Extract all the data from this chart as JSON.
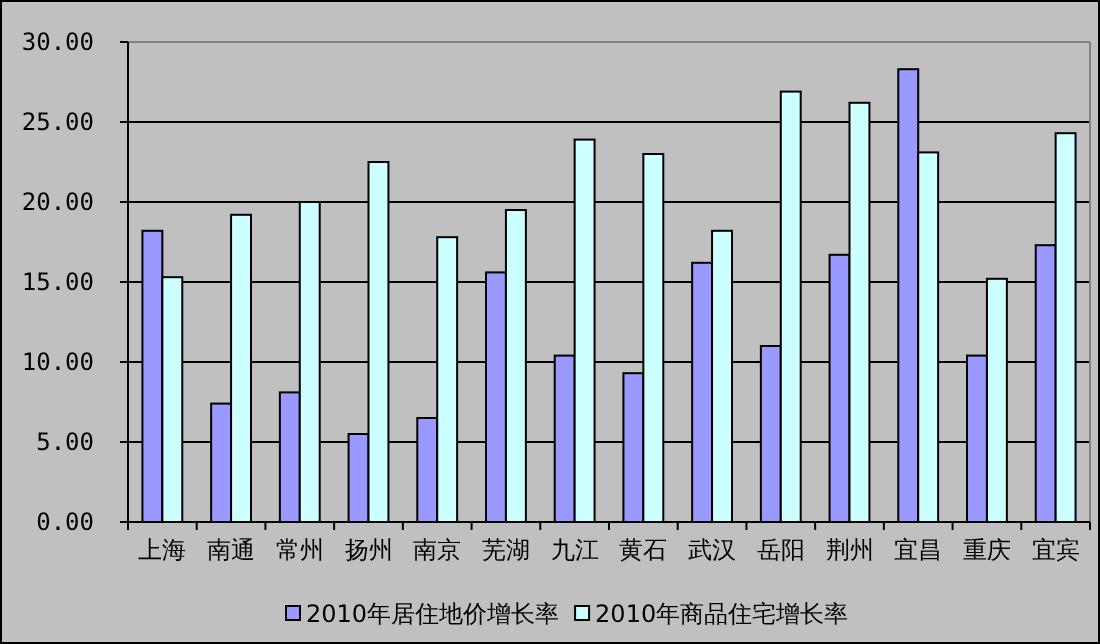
{
  "chart_data": {
    "type": "bar",
    "categories": [
      "上海",
      "南通",
      "常州",
      "扬州",
      "南京",
      "芜湖",
      "九江",
      "黄石",
      "武汉",
      "岳阳",
      "荆州",
      "宜昌",
      "重庆",
      "宜宾"
    ],
    "series": [
      {
        "name": "2010年居住地价增长率",
        "color": "#9999ff",
        "values": [
          18.2,
          7.4,
          8.1,
          5.5,
          6.5,
          15.6,
          10.4,
          9.3,
          16.2,
          11.0,
          16.7,
          28.3,
          10.4,
          17.3
        ]
      },
      {
        "name": "2010年商品住宅增长率",
        "color": "#ccffff",
        "values": [
          15.3,
          19.2,
          20.0,
          22.5,
          17.8,
          19.5,
          23.9,
          23.0,
          18.2,
          26.9,
          26.2,
          23.1,
          15.2,
          24.3
        ]
      }
    ],
    "ylim": [
      0,
      30
    ],
    "yticks": [
      {
        "value": 0,
        "label": "0.00"
      },
      {
        "value": 5,
        "label": "5.00"
      },
      {
        "value": 10,
        "label": "10.00"
      },
      {
        "value": 15,
        "label": "15.00"
      },
      {
        "value": 20,
        "label": "20.00"
      },
      {
        "value": 25,
        "label": "25.00"
      },
      {
        "value": 30,
        "label": "30.00"
      }
    ],
    "grid": "y",
    "legend": "bottom"
  }
}
